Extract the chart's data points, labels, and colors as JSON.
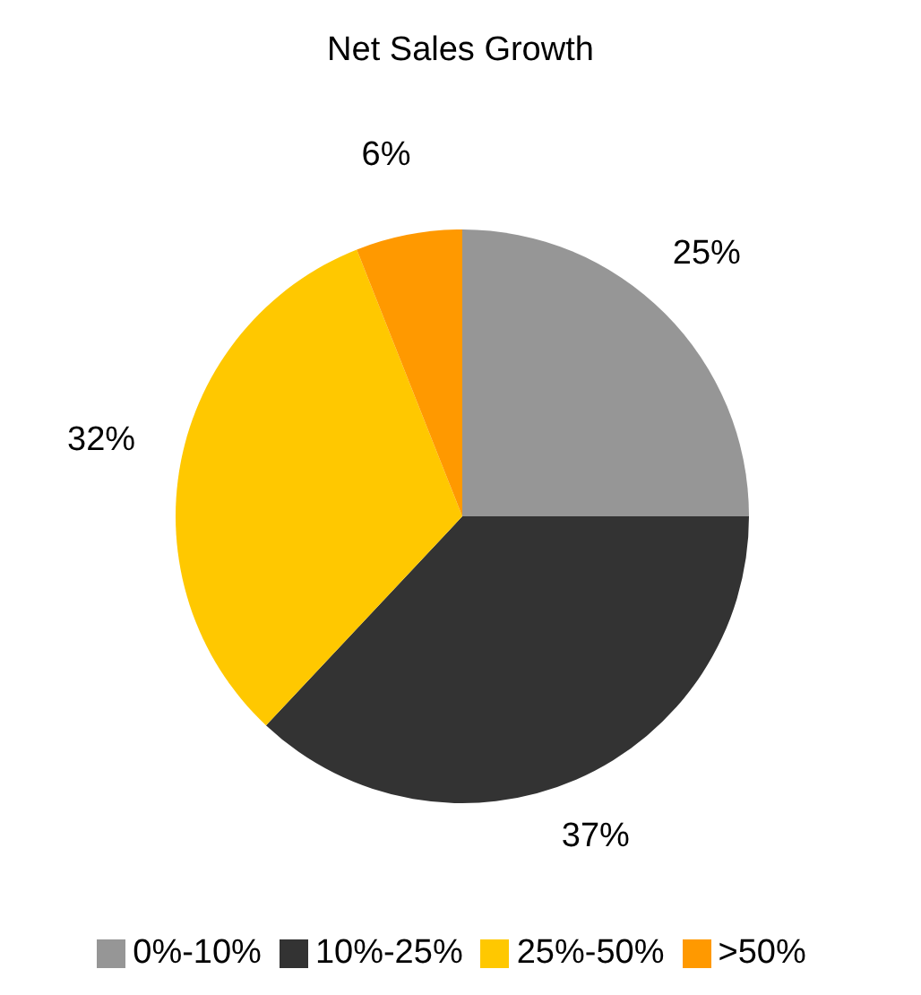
{
  "chart_data": {
    "type": "pie",
    "title": "Net Sales Growth",
    "categories": [
      "0%-10%",
      "10%-25%",
      "25%-50%",
      ">50%"
    ],
    "values": [
      25,
      37,
      32,
      6
    ],
    "value_labels": [
      "25%",
      "37%",
      "32%",
      "6%"
    ],
    "colors": [
      "#969696",
      "#333333",
      "#ffc800",
      "#ff9900"
    ],
    "legend": "bottom"
  }
}
